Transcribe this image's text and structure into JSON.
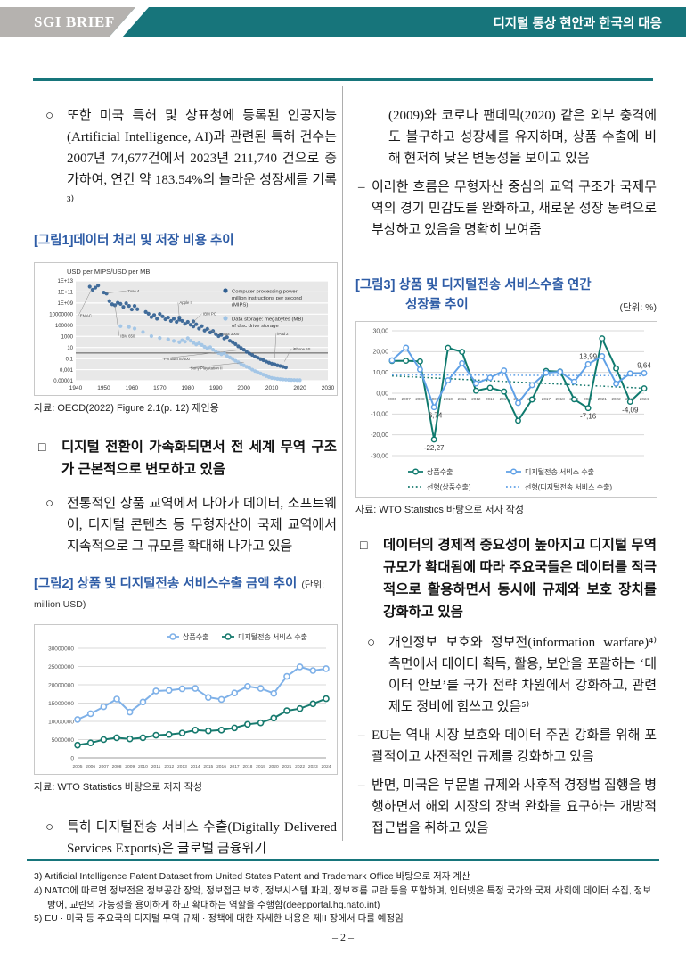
{
  "header": {
    "brand": "SGI BRIEF",
    "title": "디지털 통상 현안과 한국의 대응"
  },
  "colors": {
    "header_teal": "#17757B",
    "brand_gray": "#B5B2AF",
    "caption_blue": "#2E5CA6"
  },
  "left_column": {
    "para1_marker": "○",
    "para1": "또한 미국 특허 및 상표청에 등록된 인공지능 (Artificial Intelligence, AI)과 관련된 특허 건수는 2007년 74,677건에서 2023년 211,740 건으로 증가하여, 연간 약 183.54%의 놀라운 성장세를 기록³⁾",
    "fig1_caption": "[그림1]데이터 처리 및 저장 비용 추이",
    "fig1_source": "자료: OECD(2022) Figure 2.1(p. 12) 재인용",
    "heading1_marker": "□",
    "heading1": "디지털 전환이 가속화되면서 전 세계 무역 구조가 근본적으로 변모하고 있음",
    "para2_marker": "○",
    "para2": "전통적인 상품 교역에서 나아가 데이터, 소프트웨어, 디지털 콘텐츠 등 무형자산이 국제 교역에서 지속적으로 그 규모를 확대해 나가고 있음",
    "fig2_caption": "[그림2] 상품 및 디지털전송 서비스수출 금액 추이",
    "fig2_unit": "(단위: million USD)",
    "fig2_source": "자료: WTO Statistics 바탕으로 저자 작성",
    "para3_marker": "○",
    "para3": "특히 디지털전송 서비스 수출(Digitally Delivered Services Exports)은 글로벌 금융위기"
  },
  "right_column": {
    "para1": "(2009)와 코로나 팬데믹(2020) 같은 외부 충격에도 불구하고 성장세를 유지하며, 상품 수출에 비해 현저히 낮은 변동성을 보이고 있음",
    "dash_marker": "–",
    "dash1": "이러한 흐름은 무형자산 중심의 교역 구조가 국제무역의 경기 민감도를 완화하고, 새로운 성장 동력으로 부상하고 있음을 명확히 보여줌",
    "fig3_caption_line1": "[그림3] 상품 및 디지털전송 서비스수출 연간",
    "fig3_caption_line2": "성장률 추이",
    "fig3_unit": "(단위: %)",
    "fig3_source": "자료: WTO Statistics 바탕으로 저자 작성",
    "heading2_marker": "□",
    "heading2": "데이터의 경제적 중요성이 높아지고 디지털 무역 규모가 확대됨에 따라 주요국들은 데이터를 적극적으로 활용하면서 동시에 규제와 보호 장치를 강화하고 있음",
    "para2_marker": "○",
    "para2": "개인정보 보호와 정보전(information warfare)⁴⁾ 측면에서 데이터 획득, 활용, 보안을 포괄하는 ‘데이터 안보’를 국가 전략 차원에서 강화하고, 관련 제도 정비에 힘쓰고 있음⁵⁾",
    "dash2": "EU는 역내 시장 보호와 데이터 주권 강화를 위해 포괄적이고 사전적인 규제를 강화하고 있음",
    "dash3": "반면, 미국은 부문별 규제와 사후적 경쟁법 집행을 병행하면서 해외 시장의 장벽 완화를 요구하는 개방적 접근법을 취하고 있음"
  },
  "footnotes": [
    "3) Artificial Intelligence Patent Dataset from United States Patent and Trademark Office 바탕으로 저자 계산",
    "4) NATO에 따르면 정보전은 정보공간 장악, 정보접근 보호, 정보시스템 파괴, 정보흐름 교란 등을 포함하며, 인터넷은 특정 국가와 국제 사회에 데이터 수집, 정보방어, 교란의 가능성을 용이하게 하고 확대하는 역할을  수행함(deepportal.hq.nato.int)",
    "5) EU · 미국 등 주요국의 디지털 무역 규제 · 정책에 대한 자세한 내용은 제II 장에서 다룰 예정임"
  ],
  "page_number": "– 2 –",
  "chart_data": [
    {
      "id": "fig1",
      "type": "scatter",
      "title": "USD per MIPS/USD per MB",
      "x_axis": {
        "min": 1940,
        "max": 2030,
        "tick": 10
      },
      "y_axis_log10_ticks": [
        13,
        11,
        9,
        7,
        5,
        3,
        1,
        -1,
        -3,
        -5
      ],
      "y_axis_tick_labels": [
        "1E+13",
        "1E+11",
        "1E+09",
        "10000000",
        "100000",
        "1000",
        "10",
        "0,1",
        "0,001",
        "0,00001"
      ],
      "reference_line_value": 1,
      "series": [
        {
          "name": "Computer processing power: million instructions per second (MIPS)",
          "legend_lines": [
            "Computer processing power:",
            "million instructions per second",
            "(MIPS)"
          ],
          "color": "#2F5E91",
          "points": [
            [
              1945,
              900000000000.0
            ],
            [
              1946,
              250000000000.0
            ],
            [
              1947,
              600000000000.0
            ],
            [
              1948,
              1500000000000.0
            ],
            [
              1950,
              80000000000.0
            ],
            [
              1951,
              50000000000.0
            ],
            [
              1952,
              2200000000.0
            ],
            [
              1953,
              600000000.0
            ],
            [
              1954,
              400000000.0
            ],
            [
              1955,
              1100000000.0
            ],
            [
              1956,
              700000000.0
            ],
            [
              1957,
              200000000.0
            ],
            [
              1958,
              900000000.0
            ],
            [
              1959,
              300000000.0
            ],
            [
              1960,
              70000000.0
            ],
            [
              1961,
              300000000.0
            ],
            [
              1962,
              80000000.0
            ],
            [
              1965,
              25000000.0
            ],
            [
              1966,
              12000000.0
            ],
            [
              1967,
              3000000.0
            ],
            [
              1968,
              7000000.0
            ],
            [
              1969,
              1500000.0
            ],
            [
              1970,
              11000000.0
            ],
            [
              1971,
              4000000.0
            ],
            [
              1972,
              1200000.0
            ],
            [
              1973,
              2500000.0
            ],
            [
              1974,
              600000.0
            ],
            [
              1975,
              1500000.0
            ],
            [
              1976,
              400000.0
            ],
            [
              1977,
              2500000.0
            ],
            [
              1977,
              1000000.0
            ],
            [
              1978,
              600000.0
            ],
            [
              1979,
              180000.0
            ],
            [
              1980,
              400000.0
            ],
            [
              1981,
              120000.0
            ],
            [
              1982,
              500000.0
            ],
            [
              1982,
              60000.0
            ],
            [
              1983,
              150000.0
            ],
            [
              1984,
              25000.0
            ],
            [
              1985,
              70000.0
            ],
            [
              1986,
              11000.0
            ],
            [
              1987,
              22000.0
            ],
            [
              1988,
              5000.0
            ],
            [
              1989,
              9000.0
            ],
            [
              1990,
              2500.0
            ],
            [
              1991,
              1100.0
            ],
            [
              1992,
              1800.0
            ],
            [
              1993,
              400.0
            ],
            [
              1994,
              700.0
            ],
            [
              1995,
              160.0
            ],
            [
              1996,
              90
            ],
            [
              1997,
              40
            ],
            [
              1998,
              16
            ],
            [
              1999,
              8
            ],
            [
              2000,
              4
            ],
            [
              2001,
              1.6
            ],
            [
              2002,
              0.8
            ],
            [
              2003,
              0.45
            ],
            [
              2004,
              0.22
            ],
            [
              2005,
              0.14
            ],
            [
              2006,
              0.08
            ],
            [
              2007,
              0.05
            ],
            [
              2008,
              0.028
            ],
            [
              2009,
              0.018
            ],
            [
              2010,
              0.012
            ],
            [
              2011,
              0.009
            ],
            [
              2012,
              0.006
            ],
            [
              2013,
              0.0045
            ],
            [
              2014,
              0.0032
            ],
            [
              2015,
              0.0024
            ]
          ]
        },
        {
          "name": "Data storage: megabytes (MB) of disc drive storage",
          "legend_lines": [
            "Data storage: megabytes (MB)",
            "of disc drive storage"
          ],
          "color": "#9CC2E5",
          "points": [
            [
              1956,
              70000.0
            ],
            [
              1959,
              50000.0
            ],
            [
              1961,
              25000.0
            ],
            [
              1964,
              6000.0
            ],
            [
              1967,
              1100.0
            ],
            [
              1970,
              500.0
            ],
            [
              1973,
              280.0
            ],
            [
              1975,
              150.0
            ],
            [
              1977,
              90
            ],
            [
              1978,
              200.0
            ],
            [
              1979,
              110.0
            ],
            [
              1980,
              450.0
            ],
            [
              1981,
              160.0
            ],
            [
              1982,
              70
            ],
            [
              1983,
              35
            ],
            [
              1984,
              55
            ],
            [
              1985,
              28
            ],
            [
              1986,
              13
            ],
            [
              1987,
              7
            ],
            [
              1988,
              11
            ],
            [
              1989,
              4
            ],
            [
              1990,
              2
            ],
            [
              1991,
              1
            ],
            [
              1992,
              0.6
            ],
            [
              1993,
              0.9
            ],
            [
              1994,
              0.3
            ],
            [
              1995,
              0.16
            ],
            [
              1996,
              0.09
            ],
            [
              1997,
              0.04
            ],
            [
              1998,
              0.022
            ],
            [
              1999,
              0.011
            ],
            [
              2000,
              0.006
            ],
            [
              2001,
              0.0032
            ],
            [
              2002,
              0.0019
            ],
            [
              2003,
              0.001
            ],
            [
              2004,
              0.00055
            ],
            [
              2005,
              0.00032
            ],
            [
              2006,
              0.0002
            ],
            [
              2007,
              0.00012
            ],
            [
              2008,
              7e-05
            ],
            [
              2009,
              4.5e-05
            ],
            [
              2010,
              3.2e-05
            ],
            [
              2011,
              2.6e-05
            ],
            [
              2012,
              2.2e-05
            ],
            [
              2013,
              1.9e-05
            ],
            [
              2014,
              1.7e-05
            ],
            [
              2015,
              1.55e-05
            ],
            [
              2016,
              1.45e-05
            ],
            [
              2017,
              1.4e-05
            ],
            [
              2018,
              1.35e-05
            ],
            [
              2019,
              1.3e-05
            ],
            [
              2020,
              1.28e-05
            ]
          ]
        }
      ],
      "annotations": [
        {
          "t": "ENIAC",
          "lx": 1941.5,
          "lv": 6.5,
          "px": 1945.5,
          "pv": 11.3
        },
        {
          "t": "Zuse 4",
          "lx": 1958.5,
          "lv": 10.9,
          "px": 1951,
          "pv": 10.8
        },
        {
          "t": "IBM 650",
          "lx": 1956,
          "lv": 2.8,
          "px": 1954,
          "pv": 8.6
        },
        {
          "t": "Apple II",
          "lx": 1977,
          "lv": 8.8,
          "px": 1977,
          "pv": 6.3
        },
        {
          "t": "IBM PC",
          "lx": 1985.5,
          "lv": 6.8,
          "px": 1982,
          "pv": 5.6
        },
        {
          "t": "Amiga 3000",
          "lx": 1991,
          "lv": 3.2,
          "px": 1987.5,
          "pv": 4.3
        },
        {
          "t": "Pentium III/500",
          "lx": 1971.5,
          "lv": -1.3,
          "px": 1997.5,
          "pv": 0.5
        },
        {
          "t": "Sony Playstation II",
          "lx": 1981,
          "lv": -3,
          "px": 2000,
          "pv": -1.7
        },
        {
          "t": "iPad 2",
          "lx": 2012,
          "lv": 3.2,
          "px": 2011,
          "pv": -0.9
        },
        {
          "t": "iPhone 5S",
          "lx": 2017.5,
          "lv": 0.5,
          "px": 2014.5,
          "pv": -1.55
        }
      ]
    },
    {
      "id": "fig2",
      "type": "line",
      "categories": [
        2005,
        2006,
        2007,
        2008,
        2009,
        2010,
        2011,
        2012,
        2013,
        2014,
        2015,
        2016,
        2017,
        2018,
        2019,
        2020,
        2021,
        2022,
        2023,
        2024
      ],
      "ylim": [
        0,
        30000000
      ],
      "ytick": 5000000,
      "series": [
        {
          "name": "상품수출",
          "color": "#7FB1E8",
          "values": [
            10500000,
            12100000,
            14000000,
            16100000,
            12550000,
            15300000,
            18300000,
            18500000,
            18900000,
            19000000,
            16550000,
            16000000,
            17750000,
            19550000,
            19000000,
            17650000,
            22300000,
            24900000,
            23900000,
            24400000
          ]
        },
        {
          "name": "디지털전송 서비스 수출",
          "color": "#177A6E",
          "values": [
            3500000,
            4100000,
            5000000,
            5500000,
            5200000,
            5500000,
            6200000,
            6400000,
            6800000,
            7600000,
            7400000,
            7600000,
            8200000,
            9200000,
            9600000,
            10900000,
            12900000,
            13500000,
            14800000,
            16200000
          ]
        }
      ]
    },
    {
      "id": "fig3",
      "type": "line",
      "categories": [
        2006,
        2007,
        2008,
        2009,
        2010,
        2011,
        2012,
        2013,
        2014,
        2015,
        2016,
        2017,
        2018,
        2019,
        2020,
        2021,
        2022,
        2023,
        2024
      ],
      "ylim": [
        -30,
        30
      ],
      "ytick": 10,
      "series": [
        {
          "name": "상품수출",
          "color": "#0F7A6E",
          "values": [
            15.5,
            15.6,
            15.3,
            -22.27,
            21.8,
            19.9,
            1.2,
            2.6,
            0.8,
            -13.2,
            -3.0,
            10.7,
            10.4,
            -2.9,
            -7.16,
            26.3,
            11.9,
            -4.09,
            2.3
          ]
        },
        {
          "name": "디지털전송 서비스 수출",
          "color": "#5FA0E6",
          "values": [
            15.8,
            21.9,
            11.4,
            -6.74,
            6.2,
            14.4,
            4.7,
            7.4,
            10.9,
            -4.7,
            3.9,
            9.8,
            10.3,
            5.5,
            13.99,
            17.8,
            4.6,
            9.5,
            9.64
          ]
        }
      ],
      "trend_lines": [
        {
          "name": "선형(상품수출)",
          "color": "#17796E",
          "from": 8.3,
          "to": 2.4
        },
        {
          "name": "선형(디지털전송 서비스 수출)",
          "color": "#5FA0E6",
          "from": 8.8,
          "to": 8.4
        }
      ],
      "point_labels": [
        {
          "series": 0,
          "year": 2009,
          "text": "-22,27",
          "pos": "below"
        },
        {
          "series": 1,
          "year": 2009,
          "text": "-6,74",
          "pos": "below"
        },
        {
          "series": 1,
          "year": 2020,
          "text": "13,99",
          "pos": "above"
        },
        {
          "series": 0,
          "year": 2020,
          "text": "-7,16",
          "pos": "below"
        },
        {
          "series": 0,
          "year": 2023,
          "text": "-4,09",
          "pos": "below"
        },
        {
          "series": 1,
          "year": 2024,
          "text": "9,64",
          "pos": "above"
        }
      ]
    }
  ]
}
